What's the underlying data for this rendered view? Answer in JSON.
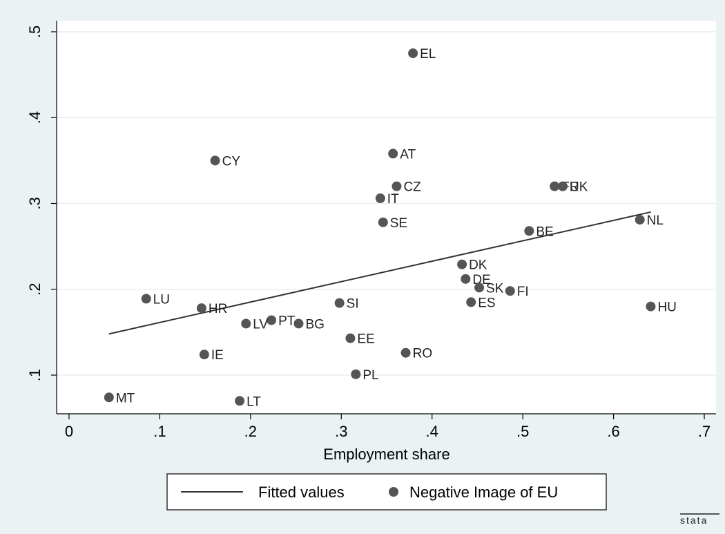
{
  "chart_data": {
    "type": "scatter",
    "title": "",
    "xlabel": "Employment share",
    "ylabel": "",
    "xlim": [
      0,
      0.7
    ],
    "ylim": [
      0.05,
      0.5
    ],
    "xticks": [
      "0",
      ".1",
      ".2",
      ".3",
      ".4",
      ".5",
      ".6",
      ".7"
    ],
    "yticks": [
      ".1",
      ".2",
      ".3",
      ".4",
      ".5"
    ],
    "grid": true,
    "legend_position": "bottom",
    "series": [
      {
        "name": "Negative Image of EU",
        "marker": "circle",
        "color": "#555555",
        "points": [
          {
            "label": "EL",
            "x": 0.379,
            "y": 0.475
          },
          {
            "label": "AT",
            "x": 0.357,
            "y": 0.358
          },
          {
            "label": "CY",
            "x": 0.161,
            "y": 0.35
          },
          {
            "label": "CZ",
            "x": 0.361,
            "y": 0.32
          },
          {
            "label": "FR",
            "x": 0.535,
            "y": 0.32
          },
          {
            "label": "UK",
            "x": 0.544,
            "y": 0.32
          },
          {
            "label": "IT",
            "x": 0.343,
            "y": 0.306
          },
          {
            "label": "NL",
            "x": 0.629,
            "y": 0.281
          },
          {
            "label": "SE",
            "x": 0.346,
            "y": 0.278
          },
          {
            "label": "BE",
            "x": 0.507,
            "y": 0.268
          },
          {
            "label": "DK",
            "x": 0.433,
            "y": 0.229
          },
          {
            "label": "DE",
            "x": 0.437,
            "y": 0.212
          },
          {
            "label": "SK",
            "x": 0.452,
            "y": 0.202
          },
          {
            "label": "FI",
            "x": 0.486,
            "y": 0.198
          },
          {
            "label": "LU",
            "x": 0.085,
            "y": 0.189
          },
          {
            "label": "ES",
            "x": 0.443,
            "y": 0.185
          },
          {
            "label": "SI",
            "x": 0.298,
            "y": 0.184
          },
          {
            "label": "HU",
            "x": 0.641,
            "y": 0.18
          },
          {
            "label": "HR",
            "x": 0.146,
            "y": 0.178
          },
          {
            "label": "PT",
            "x": 0.223,
            "y": 0.164
          },
          {
            "label": "LV",
            "x": 0.195,
            "y": 0.16
          },
          {
            "label": "BG",
            "x": 0.253,
            "y": 0.16
          },
          {
            "label": "EE",
            "x": 0.31,
            "y": 0.143
          },
          {
            "label": "RO",
            "x": 0.371,
            "y": 0.126
          },
          {
            "label": "IE",
            "x": 0.149,
            "y": 0.124
          },
          {
            "label": "PL",
            "x": 0.316,
            "y": 0.101
          },
          {
            "label": "MT",
            "x": 0.044,
            "y": 0.074
          },
          {
            "label": "LT",
            "x": 0.188,
            "y": 0.07
          }
        ]
      },
      {
        "name": "Fitted values",
        "type": "line",
        "color": "#333333",
        "x": [
          0.044,
          0.641
        ],
        "y": [
          0.148,
          0.29
        ]
      }
    ]
  },
  "legend": {
    "items": [
      {
        "name": "Fitted values",
        "kind": "line"
      },
      {
        "name": "Negative Image of EU",
        "kind": "marker"
      }
    ]
  },
  "logo": {
    "text": "stata"
  }
}
